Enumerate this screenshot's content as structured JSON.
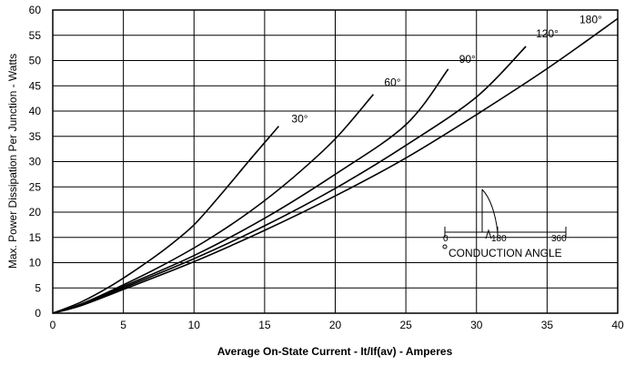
{
  "chart_data": {
    "type": "line",
    "xlabel": "Average On-State Current - It/If(av) - Amperes",
    "ylabel": "Max. Power Dissipation Per Junction - Watts",
    "xlim": [
      0,
      40
    ],
    "ylim": [
      0,
      60
    ],
    "xticks": [
      "0",
      "5",
      "10",
      "15",
      "20",
      "25",
      "30",
      "35",
      "40"
    ],
    "yticks": [
      "0",
      "5",
      "10",
      "15",
      "20",
      "25",
      "30",
      "35",
      "40",
      "45",
      "50",
      "55",
      "60"
    ],
    "grid": true,
    "series": [
      {
        "name": "30°",
        "x": [
          0,
          2,
          4,
          6,
          8,
          10,
          12,
          14,
          16
        ],
        "y": [
          0,
          2.2,
          5.2,
          8.8,
          12.8,
          17.5,
          23.8,
          30.5,
          37
        ]
      },
      {
        "name": "60°",
        "x": [
          0,
          2,
          5,
          8,
          11,
          14,
          17,
          20,
          22.7
        ],
        "y": [
          0,
          1.8,
          5.6,
          9.8,
          14.6,
          20.2,
          26.8,
          34.5,
          43.3
        ]
      },
      {
        "name": "90°",
        "x": [
          0,
          2,
          5,
          10,
          15,
          20,
          25,
          28
        ],
        "y": [
          0,
          1.7,
          5.3,
          11.4,
          18.8,
          27.5,
          37.3,
          48.3
        ]
      },
      {
        "name": "120°",
        "x": [
          0,
          2,
          5,
          10,
          15,
          20,
          25,
          30,
          33.5
        ],
        "y": [
          0,
          1.6,
          5,
          10.8,
          17.3,
          24.7,
          33.2,
          42.8,
          52.8
        ]
      },
      {
        "name": "180°",
        "x": [
          0,
          2,
          5,
          10,
          15,
          20,
          25,
          30,
          35,
          40
        ],
        "y": [
          0,
          1.5,
          4.7,
          10.2,
          16.4,
          23.2,
          30.7,
          39.3,
          48.4,
          58.3
        ]
      }
    ],
    "annotations": {
      "inset_ticks": [
        "0",
        "180",
        "360"
      ],
      "caption": "CONDUCTION ANGLE"
    }
  }
}
